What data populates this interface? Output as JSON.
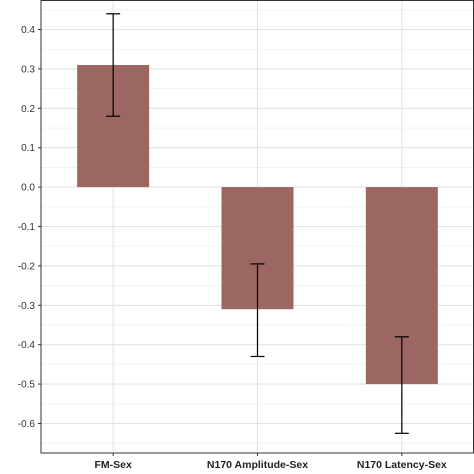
{
  "chart_data": {
    "type": "bar",
    "title": "",
    "xlabel": "",
    "ylabel": "",
    "categories": [
      "FM-Sex",
      "N170 Amplitude-Sex",
      "N170 Latency-Sex"
    ],
    "values": [
      0.31,
      -0.31,
      -0.5
    ],
    "error_low": [
      0.18,
      -0.43,
      -0.625
    ],
    "error_high": [
      0.44,
      -0.195,
      -0.38
    ],
    "ylim": [
      -0.675,
      0.475
    ],
    "yticks": [
      0.4,
      0.3,
      0.2,
      0.1,
      0.0,
      -0.1,
      -0.2,
      -0.3,
      -0.4,
      -0.5,
      -0.6
    ],
    "ytick_labels": [
      "0.4",
      "0.3",
      "0.2",
      "0.1",
      "0.0",
      "-0.1",
      "-0.2",
      "-0.3",
      "-0.4",
      "-0.5",
      "-0.6"
    ],
    "grid": true,
    "bar_color": "#9c6663",
    "error_bar_color": "#000000",
    "gridline_color": "#ebebeb",
    "panel_border_color": "#333333"
  }
}
